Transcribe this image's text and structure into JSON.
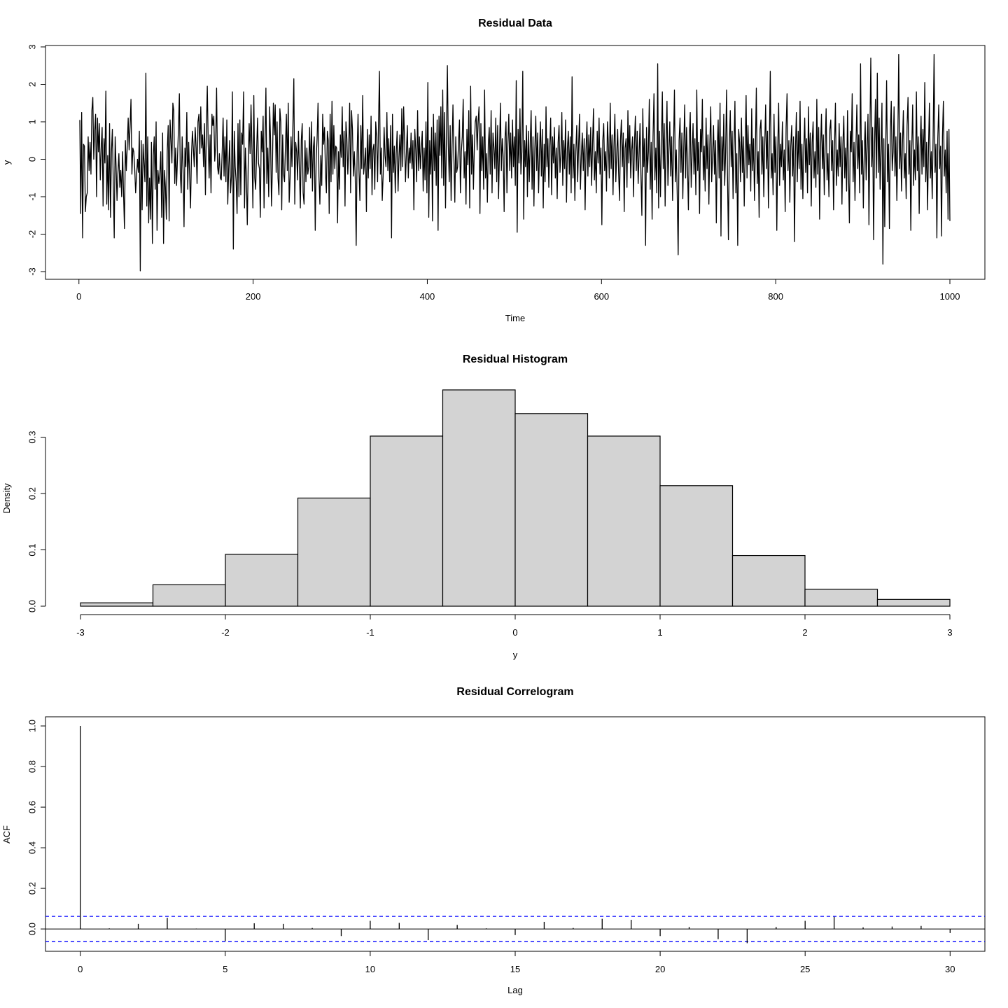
{
  "chart_data": [
    {
      "type": "line",
      "title": "Residual Data",
      "xlabel": "Time",
      "ylabel": "y",
      "xlim": [
        1,
        1000
      ],
      "ylim": [
        -3,
        3
      ],
      "xticks": [
        "0",
        "200",
        "400",
        "600",
        "800",
        "1000"
      ],
      "yticks": [
        "-3",
        "-2",
        "-1",
        "0",
        "1",
        "2",
        "3"
      ],
      "grid": false,
      "series": [
        {
          "color": "#000000",
          "values": [
            1.05,
            -1.45,
            1.25,
            -2.1,
            0.4,
            0.35,
            -1.4,
            -1.0,
            -0.9,
            0.6,
            -0.3,
            0.45,
            -0.4,
            1.3,
            1.65,
            0.0,
            0.75,
            1.2,
            -1.0,
            1.1,
            0.2,
            0.95,
            -0.55,
            0.3,
            0.85,
            -1.25,
            0.55,
            -0.1,
            1.82,
            -1.2,
            0.1,
            -1.35,
            0.95,
            -1.55,
            0.2,
            0.8,
            -0.7,
            -2.1,
            0.6,
            -0.2,
            -1.1,
            -0.35,
            0.15,
            -0.75,
            -0.3,
            -1.0,
            0.2,
            -0.9,
            -1.85,
            0.5,
            -0.3,
            0.35,
            1.1,
            0.25,
            0.85,
            1.6,
            -0.4,
            0.3,
            0.2,
            -0.25,
            -0.9,
            -0.45,
            0.0,
            -0.35,
            0.75,
            -2.98,
            0.5,
            -1.35,
            0.4,
            -0.1,
            -0.6,
            2.3,
            -1.25,
            0.6,
            -1.7,
            -0.5,
            -1.6,
            0.45,
            -2.25,
            0.1,
            0.6,
            -0.8,
            1.0,
            -1.9,
            -0.3,
            -0.65,
            -0.4,
            0.2,
            -1.55,
            0.7,
            -2.25,
            -0.3,
            -0.75,
            -1.6,
            0.25,
            0.9,
            -1.65,
            1.05,
            0.5,
            -0.1,
            1.5,
            1.3,
            -0.65,
            0.3,
            -0.7,
            0.05,
            0.8,
            1.75,
            -0.4,
            -0.9,
            0.6,
            -0.3,
            -1.8,
            0.3,
            -0.2,
            1.25,
            -0.8,
            0.45,
            -0.4,
            -1.3,
            0.1,
            0.75,
            0.3,
            -0.2,
            0.85,
            0.3,
            -0.65,
            1.0,
            1.2,
            0.15,
            1.4,
            0.3,
            0.65,
            -0.2,
            0.95,
            -0.95,
            0.8,
            1.95,
            0.4,
            -0.5,
            0.65,
            -0.9,
            1.2,
            0.9,
            1.15,
            -0.05,
            0.35,
            1.9,
            -0.2,
            -0.4,
            0.15,
            -0.5,
            -0.55,
            0.2,
            1.1,
            -0.45,
            0.6,
            -0.6,
            1.05,
            -1.2,
            -0.25,
            0.5,
            -0.9,
            -0.45,
            1.8,
            -2.4,
            0.75,
            -0.2,
            -0.6,
            -1.45,
            0.95,
            -1.0,
            1.05,
            -0.95,
            0.7,
            0.4,
            1.8,
            -1.3,
            0.3,
            -0.5,
            -1.75,
            -0.1,
            0.95,
            0.15,
            1.45,
            0.25,
            -1.3,
            1.7,
            -0.5,
            -0.8,
            0.2,
            1.1,
            -0.1,
            -0.25,
            -1.55,
            0.75,
            0.2,
            1.15,
            -1.3,
            0.4,
            1.9,
            -0.65,
            0.3,
            -1.0,
            1.4,
            0.5,
            -1.25,
            -0.2,
            1.5,
            0.65,
            1.45,
            -0.35,
            1.0,
            -0.5,
            -0.95,
            1.35,
            1.0,
            -1.35,
            0.65,
            -0.4,
            -0.6,
            0.35,
            1.2,
            -0.3,
            1.5,
            -1.15,
            -0.5,
            0.6,
            -0.2,
            0.9,
            2.15,
            -1.2,
            0.45,
            0.2,
            -0.55,
            0.75,
            -0.3,
            -1.3,
            0.5,
            0.95,
            -0.9,
            -1.2,
            0.5,
            -0.6,
            0.3,
            -0.4,
            -0.2,
            0.85,
            -0.5,
            1.0,
            -0.85,
            0.3,
            0.6,
            -1.9,
            0.0,
            0.55,
            1.5,
            -0.45,
            -1.2,
            0.1,
            -0.7,
            1.2,
            0.4,
            0.85,
            -0.35,
            -0.9,
            0.75,
            0.5,
            -1.45,
            1.2,
            -0.6,
            1.55,
            -0.4,
            0.9,
            -0.25,
            0.35,
            0.3,
            -1.7,
            0.2,
            -0.8,
            0.65,
            0.05,
            1.4,
            -0.2,
            0.75,
            -1.25,
            1.0,
            0.55,
            -0.4,
            0.3,
            1.5,
            -0.9,
            1.3,
            0.8,
            -0.45,
            0.2,
            -0.5,
            -2.3,
            0.15,
            1.2,
            -0.3,
            -1.1,
            0.9,
            -0.25,
            1.7,
            -0.4,
            -0.1,
            0.3,
            -1.4,
            0.8,
            -0.5,
            0.65,
            -0.25,
            1.15,
            -0.95,
            0.25,
            0.4,
            -0.8,
            1.0,
            0.6,
            -0.6,
            0.95,
            2.35,
            -0.4,
            0.3,
            -1.1,
            -0.4,
            0.85,
            0.1,
            -0.2,
            1.25,
            -0.3,
            0.55,
            -0.6,
            0.9,
            -2.1,
            1.2,
            -0.35,
            0.35,
            -0.9,
            0.15,
            0.75,
            -0.85,
            0.05,
            0.65,
            -0.3,
            1.35,
            -0.2,
            1.4,
            0.5,
            -0.6,
            0.2,
            0.9,
            -0.5,
            0.3,
            -0.1,
            0.7,
            -0.25,
            0.5,
            -1.35,
            0.8,
            0.25,
            -0.6,
            1.3,
            -0.3,
            0.6,
            -0.25,
            0.3,
            0.75,
            -0.85,
            0.3,
            -0.55,
            1.0,
            -0.9,
            2.05,
            -1.55,
            0.5,
            -0.4,
            0.85,
            -1.65,
            1.2,
            -0.3,
            0.7,
            -0.7,
            1.05,
            -1.9,
            1.15,
            0.1,
            1.4,
            -0.5,
            1.85,
            -0.7,
            1.25,
            -1.3,
            0.6,
            2.5,
            0.4,
            -0.6,
            0.9,
            -1.1,
            0.3,
            1.45,
            0.05,
            -1.15,
            0.6,
            -0.35,
            -0.2,
            0.45,
            1.05,
            -0.9,
            0.2,
            0.6,
            1.6,
            -0.5,
            0.2,
            -1.2,
            0.8,
            -0.15,
            1.3,
            -1.3,
            1.95,
            -0.4,
            0.65,
            -0.8,
            0.35,
            1.0,
            1.15,
            0.25,
            1.0,
            1.4,
            -1.45,
            0.95,
            -0.3,
            0.6,
            -0.8,
            1.85,
            -0.5,
            0.15,
            -1.15,
            0.4,
            0.85,
            -0.4,
            1.3,
            -0.9,
            0.7,
            0.3,
            -0.25,
            1.1,
            -0.6,
            0.9,
            -1.05,
            0.2,
            1.5,
            -0.3,
            0.55,
            0.05,
            -1.4,
            0.6,
            1.0,
            -0.9,
            0.4,
            1.2,
            -0.3,
            0.7,
            -0.5,
            1.05,
            -0.2,
            0.6,
            -0.7,
            2.1,
            -1.95,
            0.8,
            -0.1,
            1.35,
            -0.4,
            0.2,
            2.35,
            -1.6,
            0.5,
            -0.2,
            0.9,
            -1.0,
            0.75,
            -0.6,
            0.4,
            1.3,
            -0.8,
            0.6,
            -1.25,
            0.3,
            1.15,
            -0.3,
            0.7,
            -0.9,
            0.2,
            1.0,
            -0.45,
            0.8,
            -1.3,
            0.4,
            -0.6,
            1.4,
            -0.2,
            0.55,
            -0.75,
            0.35,
            1.1,
            -0.95,
            0.6,
            -0.1,
            0.85,
            -0.5,
            0.3,
            -1.05,
            0.45,
            0.9,
            -0.35,
            0.15,
            1.25,
            -0.7,
            0.5,
            -0.25,
            1.05,
            -1.15,
            0.3,
            0.75,
            -0.4,
            0.6,
            -0.9,
            2.2,
            -0.5,
            0.4,
            -1.1,
            0.2,
            0.9,
            -0.6,
            0.35,
            1.2,
            -0.8,
            0.1,
            0.7,
            -0.3,
            0.55,
            -1.35,
            0.25,
            1.0,
            -0.45,
            0.65,
            -0.2,
            0.85,
            -0.7,
            0.4,
            1.35,
            -0.55,
            0.2,
            -0.9,
            0.75,
            -0.1,
            1.1,
            -0.4,
            0.3,
            -1.75,
            0.5,
            0.95,
            -0.3,
            0.2,
            -0.85,
            1.0,
            0.4,
            -0.5,
            1.5,
            -0.25,
            0.65,
            -0.95,
            0.35,
            1.2,
            -0.6,
            0.15,
            0.8,
            -0.35,
            -1.1,
            0.5,
            1.05,
            -0.2,
            0.7,
            -1.4,
            0.3,
            0.55,
            -0.75,
            1.3,
            -0.1,
            0.9,
            -0.5,
            0.25,
            0.6,
            -1.0,
            0.4,
            1.15,
            -0.3,
            0.75,
            -0.65,
            0.1,
            0.95,
            -0.45,
            -1.5,
            1.35,
            -0.2,
            0.55,
            -2.3,
            0.85,
            -0.35,
            0.2,
            1.6,
            -0.8,
            0.45,
            -1.6,
            0.6,
            1.75,
            -0.55,
            0.3,
            -0.9,
            2.55,
            -1.3,
            0.75,
            -1.0,
            0.4,
            1.8,
            -0.25,
            0.95,
            -1.25,
            0.5,
            1.55,
            -0.7,
            0.2,
            1.0,
            -0.45,
            0.6,
            -1.1,
            0.35,
            1.85,
            -0.6,
            0.25,
            -0.95,
            -2.55,
            0.5,
            1.1,
            -0.35,
            0.7,
            -1.05,
            0.3,
            1.45,
            -0.5,
            0.85,
            -0.2,
            -1.35,
            0.6,
            1.25,
            -0.75,
            0.15,
            0.95,
            -0.4,
            0.55,
            -0.95,
            1.85,
            -0.3,
            0.45,
            -1.45,
            0.8,
            0.2,
            1.6,
            -0.55,
            0.35,
            -0.85,
            1.1,
            -0.25,
            0.65,
            -1.2,
            0.4,
            1.4,
            -0.6,
            0.1,
            0.9,
            -0.4,
            0.5,
            -1.7,
            0.3,
            1.05,
            -0.5,
            1.5,
            -2.05,
            0.6,
            -0.3,
            1.2,
            -0.7,
            0.2,
            1.85,
            -0.45,
            -2.15,
            0.4,
            1.3,
            -0.2,
            0.75,
            -1.05,
            0.35,
            1.55,
            -0.9,
            0.15,
            -2.3,
            0.8,
            0.45,
            -0.6,
            1.1,
            -0.35,
            0.6,
            -1.25,
            0.25,
            1.7,
            -0.5,
            0.9,
            -0.15,
            0.4,
            -0.85,
            1.35,
            -0.3,
            0.55,
            -1.1,
            0.3,
            1.9,
            -0.65,
            0.2,
            -1.55,
            0.8,
            1.05,
            -0.4,
            0.6,
            -1.0,
            0.35,
            1.45,
            -0.25,
            0.75,
            -1.3,
            0.45,
            2.35,
            -0.5,
            0.15,
            -0.95,
            1.2,
            -0.35,
            0.6,
            -1.9,
            0.3,
            1.5,
            -0.7,
            0.4,
            -0.2,
            1.0,
            -0.55,
            0.25,
            -1.4,
            0.85,
            1.75,
            -0.3,
            0.5,
            -1.15,
            0.35,
            0.9,
            -0.45,
            0.6,
            -2.2,
            0.2,
            1.25,
            -0.6,
            0.75,
            -0.25,
            1.55,
            -0.8,
            0.4,
            -1.05,
            0.3,
            1.1,
            -0.35,
            0.55,
            -0.9,
            1.4,
            -0.15,
            0.7,
            -1.25,
            0.45,
            1.0,
            -0.5,
            0.2,
            -0.75,
            1.6,
            -0.4,
            0.85,
            -1.6,
            0.3,
            1.2,
            -0.25,
            0.65,
            -0.95,
            0.4,
            1.35,
            -0.55,
            0.15,
            -1.0,
            0.8,
            1.05,
            -0.3,
            0.5,
            -1.35,
            0.35,
            1.5,
            -0.7,
            0.25,
            -0.45,
            0.95,
            -0.2,
            0.6,
            -1.2,
            0.4,
            1.15,
            -0.5,
            0.3,
            -0.85,
            1.3,
            -0.35,
            -1.7,
            0.75,
            0.2,
            1.75,
            -0.6,
            0.45,
            -1.1,
            0.3,
            1.45,
            -0.25,
            0.65,
            -0.9,
            2.55,
            -0.4,
            0.5,
            -1.3,
            0.2,
            1.0,
            -0.55,
            0.35,
            1.2,
            -1.75,
            0.6,
            2.7,
            -0.2,
            0.85,
            -2.15,
            0.4,
            1.6,
            -0.5,
            2.3,
            -0.35,
            1.1,
            -0.8,
            0.25,
            1.5,
            -2.8,
            0.55,
            -1.8,
            0.3,
            2.1,
            -0.6,
            0.4,
            -1.85,
            0.75,
            1.55,
            -0.3,
            0.2,
            1.4,
            -0.45,
            0.6,
            -1.1,
            0.35,
            2.8,
            -0.25,
            0.7,
            -0.85,
            0.4,
            1.3,
            -0.5,
            0.15,
            -1.05,
            0.9,
            1.65,
            -0.4,
            0.5,
            -1.9,
            0.3,
            1.45,
            -0.7,
            0.25,
            -0.55,
            1.8,
            -0.3,
            0.6,
            -1.45,
            0.35,
            1.15,
            -0.4,
            0.8,
            -0.2,
            2.05,
            -0.6,
            0.45,
            -1.35,
            0.3,
            1.5,
            -0.5,
            0.2,
            -1.05,
            0.65,
            2.8,
            -0.35,
            0.4,
            -2.1,
            0.55,
            1.45,
            -0.25,
            0.35,
            -2.05,
            0.6,
            1.55,
            -0.45,
            0.25,
            -0.9,
            0.75,
            -1.6,
            0.8,
            -1.65
          ]
        }
      ]
    },
    {
      "type": "bar",
      "title": "Residual Histogram",
      "xlabel": "y",
      "ylabel": "Density",
      "bin_edges": [
        -3,
        -2.5,
        -2,
        -1.5,
        -1,
        -0.5,
        0,
        0.5,
        1,
        1.5,
        2,
        2.5,
        3
      ],
      "values": [
        0.006,
        0.038,
        0.092,
        0.192,
        0.302,
        0.384,
        0.342,
        0.302,
        0.214,
        0.09,
        0.03,
        0.012
      ],
      "xlim": [
        -3,
        3
      ],
      "ylim": [
        0,
        0.384
      ],
      "xticks": [
        "-3",
        "-2",
        "-1",
        "0",
        "1",
        "2",
        "3"
      ],
      "yticks": [
        "0.0",
        "0.1",
        "0.2",
        "0.3"
      ],
      "bar_color": "#d3d3d3",
      "grid": false
    },
    {
      "type": "bar",
      "title": "Residual Correlogram",
      "xlabel": "Lag",
      "ylabel": "ACF",
      "lags": [
        0,
        1,
        2,
        3,
        4,
        5,
        6,
        7,
        8,
        9,
        10,
        11,
        12,
        13,
        14,
        15,
        16,
        17,
        18,
        19,
        20,
        21,
        22,
        23,
        24,
        25,
        26,
        27,
        28,
        29,
        30
      ],
      "values": [
        1.0,
        0.003,
        0.025,
        0.055,
        0.002,
        -0.06,
        0.028,
        0.025,
        0.005,
        -0.035,
        0.04,
        0.03,
        -0.055,
        0.02,
        0.003,
        -0.03,
        0.035,
        0.005,
        0.05,
        0.045,
        -0.035,
        0.01,
        -0.05,
        -0.07,
        0.01,
        0.04,
        0.06,
        0.008,
        0.012,
        0.015,
        -0.02
      ],
      "ci": 0.062,
      "ci_color": "#0000ff",
      "xlim": [
        -1.2,
        31.2
      ],
      "ylim": [
        -0.11,
        1.045
      ],
      "xticks": [
        "0",
        "5",
        "10",
        "15",
        "20",
        "25",
        "30"
      ],
      "yticks": [
        "0.0",
        "0.2",
        "0.4",
        "0.6",
        "0.8",
        "1.0"
      ],
      "grid": false
    }
  ]
}
